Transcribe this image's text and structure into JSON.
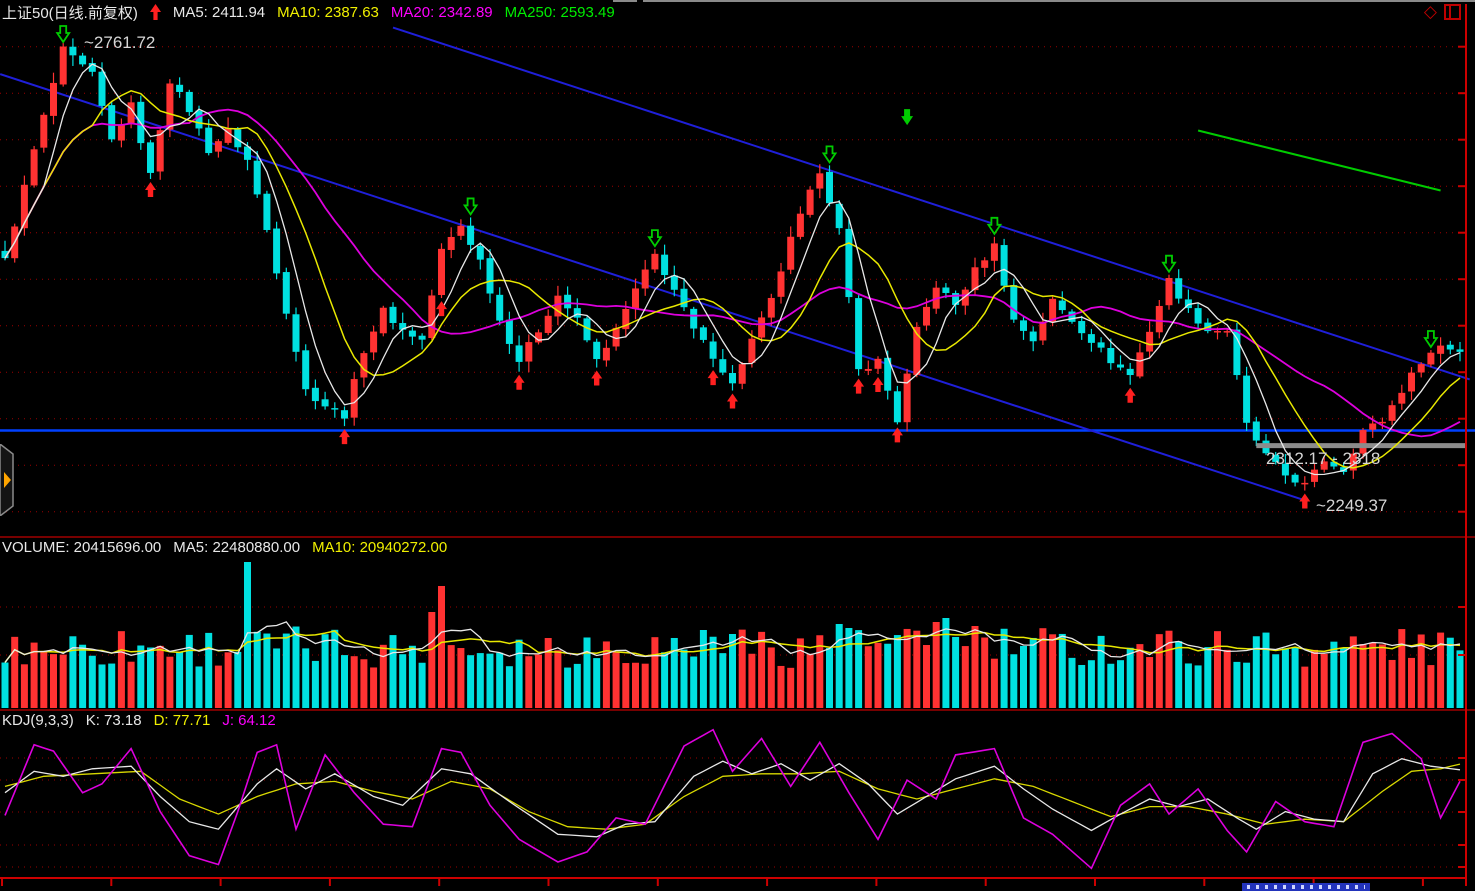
{
  "header": {
    "title": "上证50(日线.前复权)",
    "ma5": "MA5: 2411.94",
    "ma10": "MA10: 2387.63",
    "ma20": "MA20: 2342.89",
    "ma250": "MA250: 2593.49"
  },
  "icons": {
    "diamond": "◇"
  },
  "volume_header": {
    "volume": "VOLUME: 20415696.00",
    "ma5": "MA5: 22480880.00",
    "ma10": "MA10: 20940272.00"
  },
  "kdj_header": {
    "name": "KDJ(9,3,3)",
    "k": "K: 73.18",
    "d": "D: 77.71",
    "j": "J: 64.12"
  },
  "annotations": {
    "high_label": "~2761.72",
    "low_label": "~2249.37",
    "range_label": "2312.17 - 2318"
  },
  "colors": {
    "background": "#000000",
    "candle_up": "#ff3232",
    "candle_down": "#00e0e0",
    "ma5": "#e8e8e8",
    "ma10": "#e8e800",
    "ma20": "#dd00dd",
    "ma250": "#00cc00",
    "grid": "#9b0000",
    "axis": "#cc0000",
    "divider": "#a00000",
    "trendline": "#1f1fd9",
    "support_line": "#0041ff",
    "range_bar": "#8c8c8c",
    "buy_arrow": "#ff2020",
    "sell_arrow": "#00cc00",
    "k_line": "#e8e8e8",
    "d_line": "#d8d800",
    "j_line": "#dd00dd"
  },
  "chart_data": [
    {
      "type": "candlestick",
      "symbol": "上证50",
      "period": "日线",
      "adjust": "前复权",
      "ma_values": {
        "MA5": 2411.94,
        "MA10": 2387.63,
        "MA20": 2342.89,
        "MA250": 2593.49
      },
      "num_candles": 151,
      "price_axis": {
        "top": 2787,
        "bottom": 2214
      },
      "close_keypoints": [
        [
          0,
          2523
        ],
        [
          3,
          2646
        ],
        [
          6,
          2758
        ],
        [
          9,
          2730
        ],
        [
          11,
          2657
        ],
        [
          13,
          2696
        ],
        [
          15,
          2618
        ],
        [
          17,
          2724
        ],
        [
          19,
          2691
        ],
        [
          21,
          2646
        ],
        [
          23,
          2668
        ],
        [
          25,
          2635
        ],
        [
          27,
          2557
        ],
        [
          29,
          2467
        ],
        [
          31,
          2378
        ],
        [
          33,
          2361
        ],
        [
          35,
          2350
        ],
        [
          37,
          2423
        ],
        [
          39,
          2467
        ],
        [
          41,
          2445
        ],
        [
          43,
          2434
        ],
        [
          45,
          2534
        ],
        [
          47,
          2562
        ],
        [
          49,
          2523
        ],
        [
          51,
          2456
        ],
        [
          53,
          2411
        ],
        [
          55,
          2445
        ],
        [
          57,
          2484
        ],
        [
          59,
          2456
        ],
        [
          61,
          2411
        ],
        [
          63,
          2445
        ],
        [
          65,
          2490
        ],
        [
          67,
          2529
        ],
        [
          69,
          2490
        ],
        [
          71,
          2445
        ],
        [
          73,
          2417
        ],
        [
          75,
          2384
        ],
        [
          77,
          2434
        ],
        [
          79,
          2478
        ],
        [
          81,
          2546
        ],
        [
          84,
          2624
        ],
        [
          86,
          2557
        ],
        [
          88,
          2400
        ],
        [
          90,
          2411
        ],
        [
          92,
          2344
        ],
        [
          94,
          2445
        ],
        [
          96,
          2495
        ],
        [
          98,
          2473
        ],
        [
          100,
          2512
        ],
        [
          102,
          2540
        ],
        [
          104,
          2456
        ],
        [
          106,
          2434
        ],
        [
          108,
          2478
        ],
        [
          110,
          2456
        ],
        [
          112,
          2434
        ],
        [
          114,
          2411
        ],
        [
          116,
          2395
        ],
        [
          118,
          2445
        ],
        [
          120,
          2501
        ],
        [
          122,
          2467
        ],
        [
          124,
          2445
        ],
        [
          126,
          2445
        ],
        [
          128,
          2339
        ],
        [
          130,
          2305
        ],
        [
          132,
          2283
        ],
        [
          134,
          2272
        ],
        [
          136,
          2300
        ],
        [
          138,
          2289
        ],
        [
          140,
          2333
        ],
        [
          142,
          2344
        ],
        [
          144,
          2378
        ],
        [
          146,
          2411
        ],
        [
          148,
          2428
        ],
        [
          150,
          2422
        ]
      ],
      "buy_signals_idx": [
        15,
        35,
        45,
        53,
        61,
        73,
        75,
        88,
        90,
        92,
        116,
        134
      ],
      "sell_signals_idx": [
        6,
        48,
        67,
        85,
        102,
        120,
        147
      ],
      "float_sell_signal": {
        "idx": 93,
        "price": 2674
      },
      "trendlines": [
        {
          "from": [
            40,
            2783
          ],
          "to": [
            151,
            2390
          ]
        },
        {
          "from": [
            -0.5,
            2731
          ],
          "to": [
            134,
            2255
          ]
        }
      ],
      "support_line_price": 2333,
      "ma250_segment": [
        [
          123,
          2668
        ],
        [
          148,
          2601
        ]
      ],
      "range_bar": {
        "price": 2316,
        "from_idx": 129,
        "label": "2312.17 - 2318"
      },
      "high_annotation": {
        "price": 2761.72
      },
      "low_annotation": {
        "price": 2249.37
      }
    },
    {
      "type": "bar",
      "title": "VOLUME",
      "latest": {
        "volume": 20415696.0,
        "ma5": 22480880.0,
        "ma10": 20940272.0
      },
      "base_height": 40,
      "height_spread": 42,
      "spike_heights": {
        "25": 146,
        "44": 96,
        "45": 122,
        "72": 78,
        "75": 74,
        "86": 84,
        "87": 80,
        "96": 86,
        "97": 90,
        "100": 82
      }
    },
    {
      "type": "line",
      "title": "KDJ",
      "params": "9,3,3",
      "latest": {
        "K": 73.18,
        "D": 77.71,
        "J": 64.12
      },
      "series": [
        {
          "name": "D",
          "keypoints": [
            [
              0,
              60
            ],
            [
              4,
              68
            ],
            [
              9,
              70
            ],
            [
              14,
              72
            ],
            [
              18,
              50
            ],
            [
              22,
              38
            ],
            [
              26,
              52
            ],
            [
              30,
              62
            ],
            [
              34,
              64
            ],
            [
              38,
              56
            ],
            [
              42,
              50
            ],
            [
              46,
              64
            ],
            [
              50,
              58
            ],
            [
              54,
              40
            ],
            [
              58,
              28
            ],
            [
              62,
              26
            ],
            [
              66,
              30
            ],
            [
              70,
              52
            ],
            [
              74,
              68
            ],
            [
              78,
              70
            ],
            [
              82,
              70
            ],
            [
              86,
              72
            ],
            [
              90,
              58
            ],
            [
              94,
              50
            ],
            [
              98,
              58
            ],
            [
              102,
              66
            ],
            [
              106,
              60
            ],
            [
              110,
              48
            ],
            [
              114,
              36
            ],
            [
              118,
              44
            ],
            [
              122,
              44
            ],
            [
              126,
              38
            ],
            [
              130,
              30
            ],
            [
              134,
              34
            ],
            [
              138,
              32
            ],
            [
              142,
              56
            ],
            [
              145,
              72
            ],
            [
              148,
              74
            ],
            [
              150,
              77.71
            ]
          ]
        },
        {
          "name": "K",
          "keypoints": [
            [
              0,
              55
            ],
            [
              3,
              72
            ],
            [
              6,
              68
            ],
            [
              9,
              74
            ],
            [
              13,
              76
            ],
            [
              16,
              52
            ],
            [
              19,
              32
            ],
            [
              22,
              26
            ],
            [
              26,
              62
            ],
            [
              28,
              74
            ],
            [
              31,
              58
            ],
            [
              34,
              70
            ],
            [
              38,
              52
            ],
            [
              41,
              45
            ],
            [
              45,
              74
            ],
            [
              48,
              70
            ],
            [
              52,
              48
            ],
            [
              57,
              22
            ],
            [
              61,
              20
            ],
            [
              64,
              30
            ],
            [
              67,
              32
            ],
            [
              71,
              68
            ],
            [
              74,
              80
            ],
            [
              77,
              70
            ],
            [
              80,
              78
            ],
            [
              83,
              65
            ],
            [
              86,
              78
            ],
            [
              89,
              62
            ],
            [
              92,
              38
            ],
            [
              95,
              52
            ],
            [
              98,
              66
            ],
            [
              102,
              76
            ],
            [
              105,
              58
            ],
            [
              108,
              42
            ],
            [
              112,
              25
            ],
            [
              115,
              38
            ],
            [
              118,
              50
            ],
            [
              121,
              44
            ],
            [
              124,
              50
            ],
            [
              127,
              35
            ],
            [
              129,
              26
            ],
            [
              132,
              40
            ],
            [
              135,
              34
            ],
            [
              138,
              32
            ],
            [
              141,
              70
            ],
            [
              144,
              82
            ],
            [
              147,
              76
            ],
            [
              150,
              73.18
            ]
          ]
        },
        {
          "name": "J",
          "keypoints": [
            [
              0,
              37
            ],
            [
              3,
              93
            ],
            [
              5,
              88
            ],
            [
              8,
              55
            ],
            [
              10,
              62
            ],
            [
              13,
              90
            ],
            [
              16,
              40
            ],
            [
              19,
              5
            ],
            [
              22,
              -2
            ],
            [
              24,
              40
            ],
            [
              26,
              87
            ],
            [
              28,
              93
            ],
            [
              30,
              26
            ],
            [
              33,
              85
            ],
            [
              36,
              55
            ],
            [
              39,
              30
            ],
            [
              42,
              28
            ],
            [
              45,
              90
            ],
            [
              47,
              87
            ],
            [
              50,
              45
            ],
            [
              53,
              18
            ],
            [
              57,
              0
            ],
            [
              60,
              8
            ],
            [
              63,
              35
            ],
            [
              66,
              30
            ],
            [
              70,
              92
            ],
            [
              73,
              105
            ],
            [
              75,
              72
            ],
            [
              78,
              98
            ],
            [
              81,
              60
            ],
            [
              84,
              95
            ],
            [
              87,
              55
            ],
            [
              90,
              18
            ],
            [
              93,
              65
            ],
            [
              96,
              50
            ],
            [
              98,
              85
            ],
            [
              102,
              90
            ],
            [
              105,
              35
            ],
            [
              108,
              22
            ],
            [
              112,
              -5
            ],
            [
              115,
              45
            ],
            [
              118,
              62
            ],
            [
              120,
              38
            ],
            [
              123,
              58
            ],
            [
              126,
              25
            ],
            [
              128,
              8
            ],
            [
              131,
              48
            ],
            [
              134,
              32
            ],
            [
              137,
              28
            ],
            [
              140,
              95
            ],
            [
              143,
              102
            ],
            [
              146,
              82
            ],
            [
              148,
              35
            ],
            [
              150,
              64.12
            ]
          ]
        }
      ]
    }
  ]
}
